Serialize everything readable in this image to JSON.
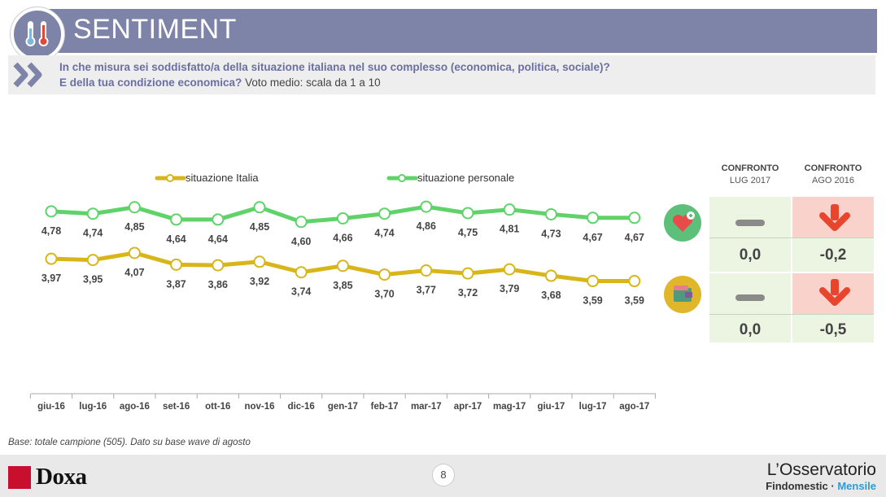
{
  "header": {
    "title": "SENTIMENT",
    "icon": "thermometer-icon"
  },
  "question": {
    "line1": "In che misura sei soddisfatto/a della situazione italiana nel suo complesso (economica, politica, sociale)?",
    "line2_bold": "E della tua condizione economica?",
    "line2_rest": "Voto medio: scala da 1 a 10"
  },
  "chart_data": {
    "type": "line",
    "categories": [
      "giu-16",
      "lug-16",
      "ago-16",
      "set-16",
      "ott-16",
      "nov-16",
      "dic-16",
      "gen-17",
      "feb-17",
      "mar-17",
      "apr-17",
      "mag-17",
      "giu-17",
      "lug-17",
      "ago-17"
    ],
    "series": [
      {
        "name": "situazione personale",
        "color": "#5fd36a",
        "values": [
          4.78,
          4.74,
          4.85,
          4.64,
          4.64,
          4.85,
          4.6,
          4.66,
          4.74,
          4.86,
          4.75,
          4.81,
          4.73,
          4.67,
          4.67
        ],
        "labels": [
          "4,78",
          "4,74",
          "4,85",
          "4,64",
          "4,64",
          "4,85",
          "4,60",
          "4,66",
          "4,74",
          "4,86",
          "4,75",
          "4,81",
          "4,73",
          "4,67",
          "4,67"
        ]
      },
      {
        "name": "situazione Italia",
        "color": "#d8b619",
        "values": [
          3.97,
          3.95,
          4.07,
          3.87,
          3.86,
          3.92,
          3.74,
          3.85,
          3.7,
          3.77,
          3.72,
          3.79,
          3.68,
          3.59,
          3.59
        ],
        "labels": [
          "3,97",
          "3,95",
          "4,07",
          "3,87",
          "3,86",
          "3,92",
          "3,74",
          "3,85",
          "3,70",
          "3,77",
          "3,72",
          "3,79",
          "3,68",
          "3,59",
          "3,59"
        ]
      }
    ],
    "legend": [
      "situazione Italia",
      "situazione personale"
    ],
    "legend_position": "top"
  },
  "comparison": {
    "headers": [
      {
        "title": "CONFRONTO",
        "sub": "LUG 2017"
      },
      {
        "title": "CONFRONTO",
        "sub": "AGO 2016"
      }
    ],
    "rows": [
      {
        "icon": "heart-icon",
        "vs_lug": "0,0",
        "vs_ago": "-0,2"
      },
      {
        "icon": "wallet-icon",
        "vs_lug": "0,0",
        "vs_ago": "-0,5"
      }
    ],
    "colors": {
      "neutral": "#ecf5e2",
      "negative": "#f9d2cc",
      "arrow": "#e8452e"
    }
  },
  "base_note": "Base: totale campione (505). Dato su base wave di agosto",
  "footer": {
    "page": "8",
    "brand_left": "Doxa",
    "brand_right_1": "L’Osservatorio",
    "brand_right_2a": "Findomestic ·",
    "brand_right_2b": "Mensile"
  }
}
